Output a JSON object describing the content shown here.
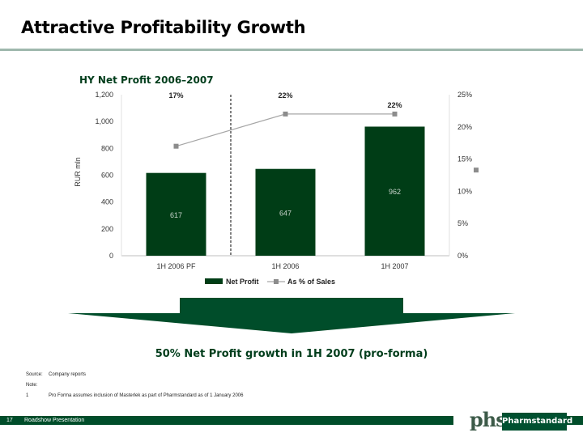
{
  "slide": {
    "title": "Attractive Profitability Growth",
    "headline": "50% Net Profit growth in 1H 2007 (pro-forma)",
    "page_number": "17",
    "footer": "Roadshow Presentation",
    "source_key": "Source:",
    "source_value": "Company reports",
    "note_key": "Note:",
    "note1_key": "1",
    "note1_value": "Pro Forma assumes inclusion of Masterlek as part of Pharmstandard as of 1 January 2006",
    "logo_mark": "phs",
    "logo_text": "Pharmstandard"
  },
  "colors": {
    "bar": "#003d16",
    "line": "#a6a6a6",
    "arrow": "#004d2a",
    "accent": "#003d1b"
  },
  "chart_data": {
    "type": "bar+line",
    "title": "HY Net Profit 2006–2007",
    "categories": [
      "1H 2006 PF",
      "1H 2006",
      "1H 2007"
    ],
    "series": [
      {
        "name": "Net Profit",
        "type": "bar",
        "axis": "left",
        "values": [
          617,
          647,
          962
        ],
        "labels": [
          "617",
          "647",
          "962"
        ]
      },
      {
        "name": "As % of Sales",
        "type": "line",
        "axis": "right",
        "values": [
          17,
          22,
          22
        ],
        "labels": [
          "17%",
          "22%",
          "22%"
        ]
      }
    ],
    "ylabel": "RUR mln",
    "ylim": [
      0,
      1200
    ],
    "y_ticks": [
      "0",
      "200",
      "400",
      "600",
      "800",
      "1,000",
      "1,200"
    ],
    "y2lim": [
      0,
      25
    ],
    "y2_ticks": [
      "0%",
      "5%",
      "10%",
      "15%",
      "20%",
      "25%"
    ],
    "legend": [
      "Net Profit",
      "As % of Sales"
    ],
    "legend_position": "bottom"
  }
}
